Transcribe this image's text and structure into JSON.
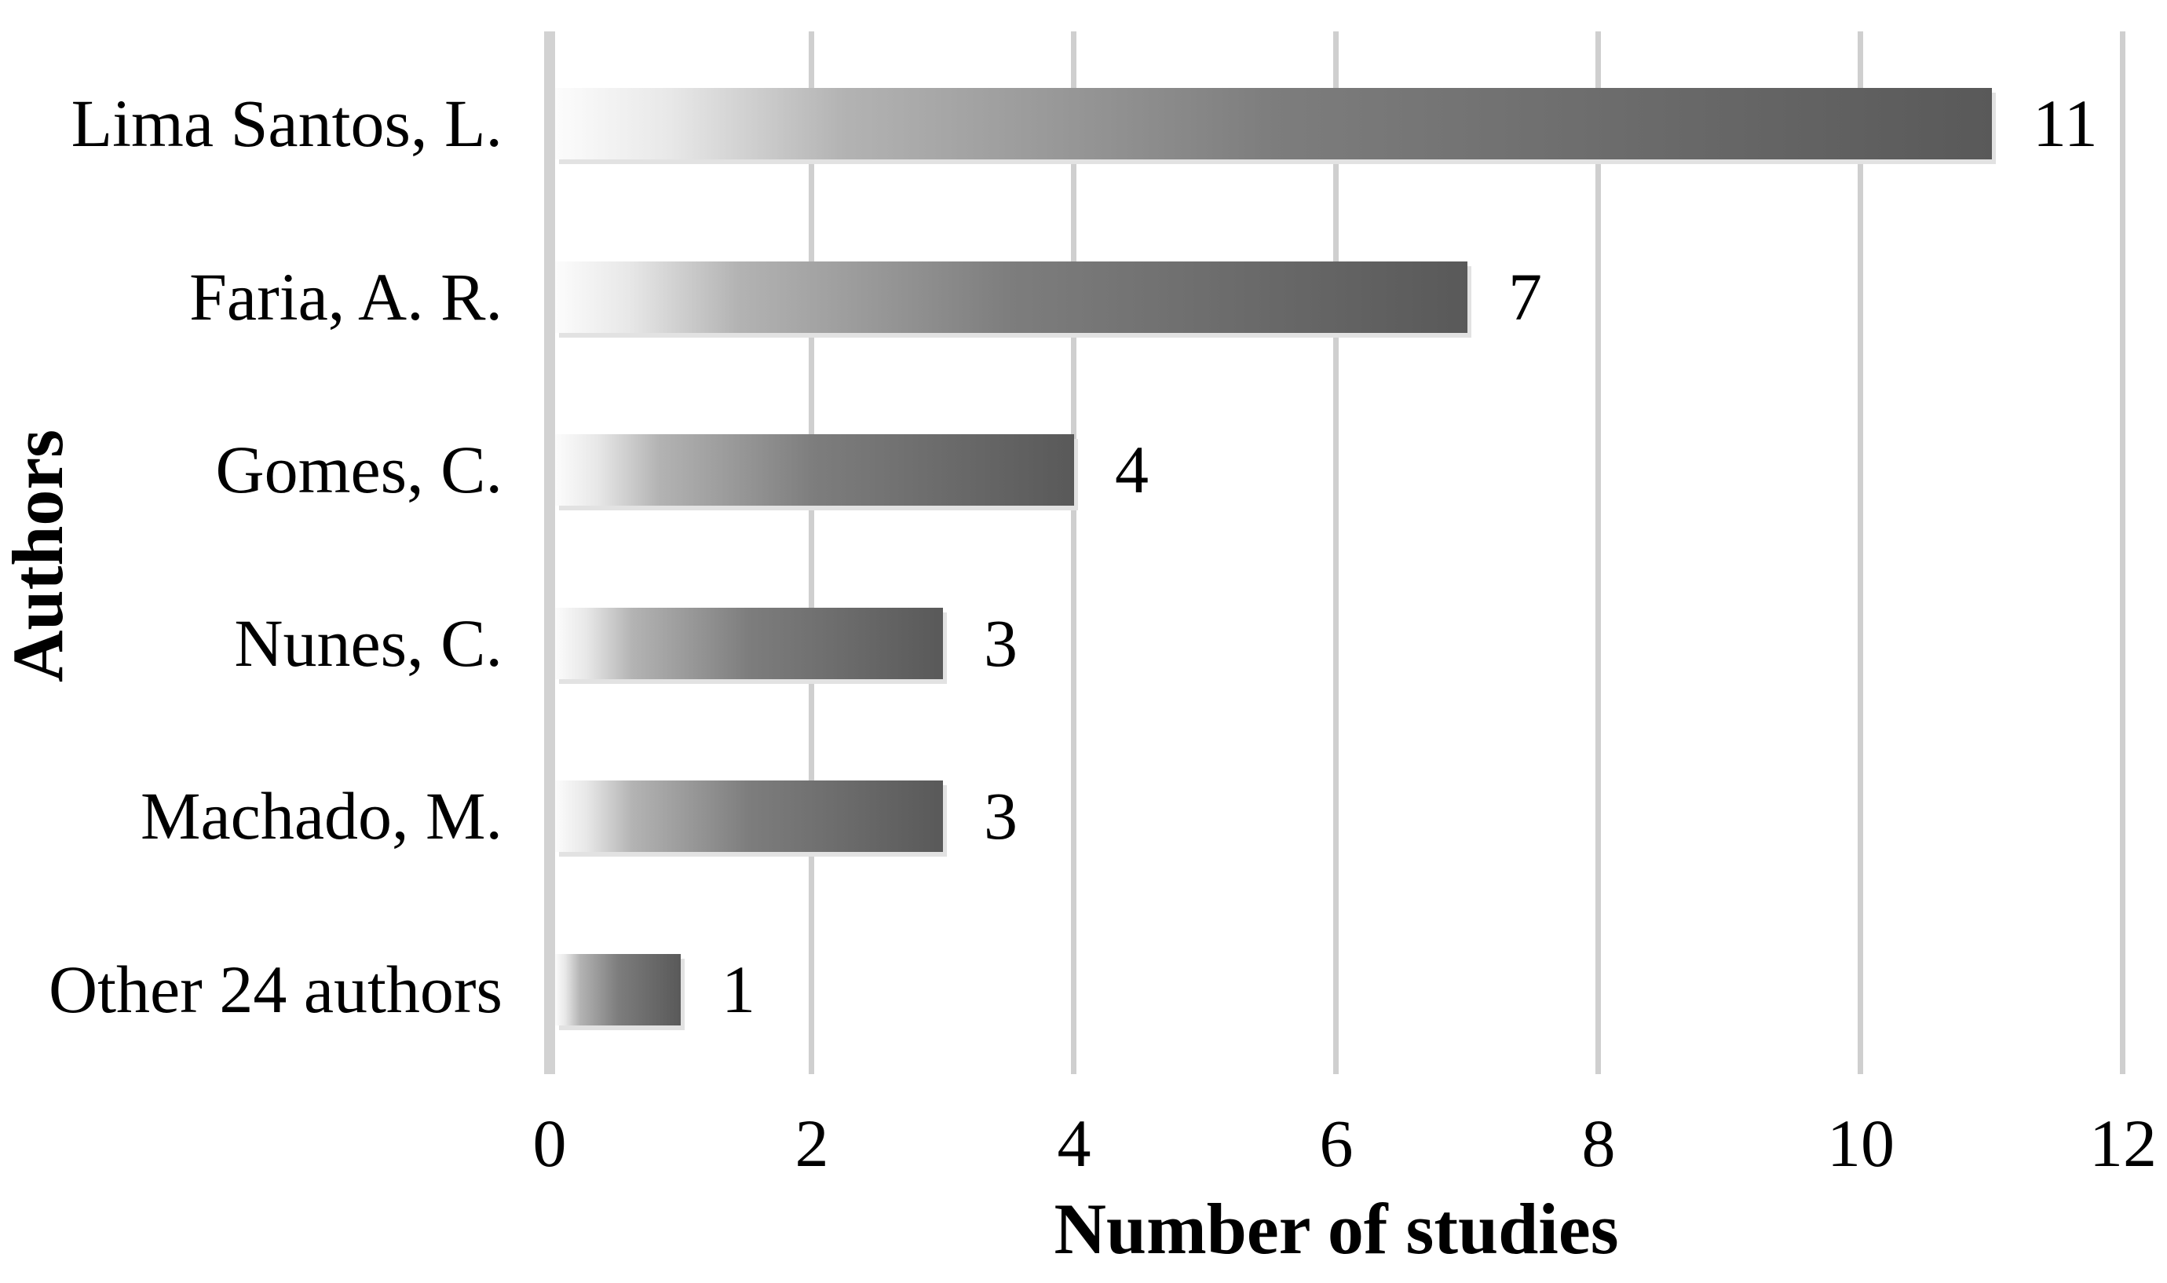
{
  "chart_data": {
    "type": "bar",
    "orientation": "horizontal",
    "title": "",
    "xlabel": "Number of studies",
    "ylabel": "Authors",
    "categories": [
      "Lima Santos, L.",
      "Faria, A. R.",
      "Gomes, C.",
      "Nunes, C.",
      "Machado, M.",
      "Other 24 authors"
    ],
    "values": [
      11,
      7,
      4,
      3,
      3,
      1
    ],
    "data_labels": [
      "11",
      "7",
      "4",
      "3",
      "3",
      "1"
    ],
    "xlim": [
      0,
      12
    ],
    "xticks": [
      "0",
      "2",
      "4",
      "6",
      "8",
      "10",
      "12"
    ],
    "grid": true,
    "legend": false,
    "colors": {
      "background": "#ffffff",
      "text": "#000000",
      "gridline": "#cfcfcf",
      "axis_line": "#d2d2d2",
      "bar_shadow": "#e2e2e2",
      "bar_gradient_stops": [
        "#fcfcfc 0%",
        "#e8e8e8 8%",
        "#b3b3b3 20%",
        "#7d7d7d 50%",
        "#595959 100%"
      ]
    }
  }
}
